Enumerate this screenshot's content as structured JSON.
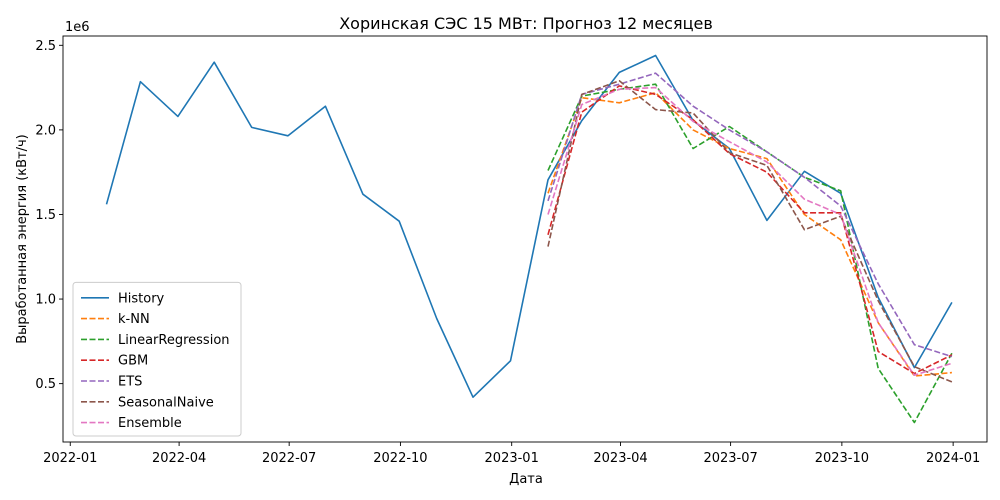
{
  "chart_data": {
    "type": "line",
    "title": "Хоринская СЭС 15 МВт: Прогноз 12 месяцев",
    "xlabel": "Дата",
    "ylabel": "Выработанная энергия (кВт/ч)",
    "y_multiplier_label": "1e6",
    "xlim": [
      "2021-12-26",
      "2024-01-29"
    ],
    "ylim": [
      0.155,
      2.555
    ],
    "x_ticks": [
      {
        "date": "2022-01-01",
        "label": "2022-01"
      },
      {
        "date": "2022-04-01",
        "label": "2022-04"
      },
      {
        "date": "2022-07-01",
        "label": "2022-07"
      },
      {
        "date": "2022-10-01",
        "label": "2022-10"
      },
      {
        "date": "2023-01-01",
        "label": "2023-01"
      },
      {
        "date": "2023-04-01",
        "label": "2023-04"
      },
      {
        "date": "2023-07-01",
        "label": "2023-07"
      },
      {
        "date": "2023-10-01",
        "label": "2023-10"
      },
      {
        "date": "2024-01-01",
        "label": "2024-01"
      }
    ],
    "y_ticks": [
      {
        "value": 0.5,
        "label": "0.5"
      },
      {
        "value": 1.0,
        "label": "1.0"
      },
      {
        "value": 1.5,
        "label": "1.5"
      },
      {
        "value": 2.0,
        "label": "2.0"
      },
      {
        "value": 2.5,
        "label": "2.5"
      }
    ],
    "legend_position": "lower-left",
    "grid": false,
    "series": [
      {
        "name": "History",
        "color": "#1f77b4",
        "dash": "solid",
        "x": [
          "2022-01-31",
          "2022-02-28",
          "2022-03-31",
          "2022-04-30",
          "2022-05-31",
          "2022-06-30",
          "2022-07-31",
          "2022-08-31",
          "2022-09-30",
          "2022-10-31",
          "2022-11-30",
          "2022-12-31",
          "2023-01-31",
          "2023-02-28",
          "2023-03-31",
          "2023-04-30",
          "2023-05-31",
          "2023-06-30",
          "2023-07-31",
          "2023-08-31",
          "2023-09-30",
          "2023-10-31",
          "2023-11-30",
          "2023-12-31"
        ],
        "values": [
          1.56,
          2.285,
          2.08,
          2.4,
          2.015,
          1.965,
          2.14,
          1.62,
          1.46,
          0.885,
          0.42,
          0.635,
          1.705,
          2.055,
          2.34,
          2.44,
          2.055,
          1.89,
          1.465,
          1.755,
          1.625,
          1.01,
          0.595,
          0.98
        ]
      },
      {
        "name": "k-NN",
        "color": "#ff7f0e",
        "dash": "dashed",
        "x": [
          "2023-01-31",
          "2023-02-28",
          "2023-03-31",
          "2023-04-30",
          "2023-05-31",
          "2023-06-30",
          "2023-07-31",
          "2023-08-31",
          "2023-09-30",
          "2023-10-31",
          "2023-11-30",
          "2023-12-31"
        ],
        "values": [
          1.625,
          2.19,
          2.16,
          2.22,
          2.0,
          1.89,
          1.83,
          1.5,
          1.35,
          0.86,
          0.545,
          0.565
        ]
      },
      {
        "name": "LinearRegression",
        "color": "#2ca02c",
        "dash": "dashed",
        "x": [
          "2023-01-31",
          "2023-02-28",
          "2023-03-31",
          "2023-04-30",
          "2023-05-31",
          "2023-06-30",
          "2023-07-31",
          "2023-08-31",
          "2023-09-30",
          "2023-10-31",
          "2023-11-30",
          "2023-12-31"
        ],
        "values": [
          1.76,
          2.2,
          2.24,
          2.27,
          1.89,
          2.02,
          1.87,
          1.72,
          1.64,
          0.59,
          0.27,
          0.68
        ]
      },
      {
        "name": "GBM",
        "color": "#d62728",
        "dash": "dashed",
        "x": [
          "2023-01-31",
          "2023-02-28",
          "2023-03-31",
          "2023-04-30",
          "2023-05-31",
          "2023-06-30",
          "2023-07-31",
          "2023-08-31",
          "2023-09-30",
          "2023-10-31",
          "2023-11-30",
          "2023-12-31"
        ],
        "values": [
          1.38,
          2.105,
          2.26,
          2.21,
          2.06,
          1.86,
          1.75,
          1.51,
          1.51,
          0.69,
          0.56,
          0.67
        ]
      },
      {
        "name": "ETS",
        "color": "#9467bd",
        "dash": "dashed",
        "x": [
          "2023-01-31",
          "2023-02-28",
          "2023-03-31",
          "2023-04-30",
          "2023-05-31",
          "2023-06-30",
          "2023-07-31",
          "2023-08-31",
          "2023-09-30",
          "2023-10-31",
          "2023-11-30",
          "2023-12-31"
        ],
        "values": [
          1.58,
          2.21,
          2.27,
          2.335,
          2.14,
          2.0,
          1.87,
          1.72,
          1.55,
          1.09,
          0.73,
          0.66
        ]
      },
      {
        "name": "SeasonalNaive",
        "color": "#8c564b",
        "dash": "dashed",
        "x": [
          "2023-01-31",
          "2023-02-28",
          "2023-03-31",
          "2023-04-30",
          "2023-05-31",
          "2023-06-30",
          "2023-07-31",
          "2023-08-31",
          "2023-09-30",
          "2023-10-31",
          "2023-11-30",
          "2023-12-31"
        ],
        "values": [
          1.31,
          2.21,
          2.29,
          2.12,
          2.1,
          1.865,
          1.79,
          1.41,
          1.49,
          0.99,
          0.6,
          0.51
        ]
      },
      {
        "name": "Ensemble",
        "color": "#e377c2",
        "dash": "dashed",
        "x": [
          "2023-01-31",
          "2023-02-28",
          "2023-03-31",
          "2023-04-30",
          "2023-05-31",
          "2023-06-30",
          "2023-07-31",
          "2023-08-31",
          "2023-09-30",
          "2023-10-31",
          "2023-11-30",
          "2023-12-31"
        ],
        "values": [
          1.5,
          2.15,
          2.24,
          2.25,
          2.05,
          1.93,
          1.81,
          1.59,
          1.5,
          0.86,
          0.55,
          0.62
        ]
      }
    ]
  }
}
